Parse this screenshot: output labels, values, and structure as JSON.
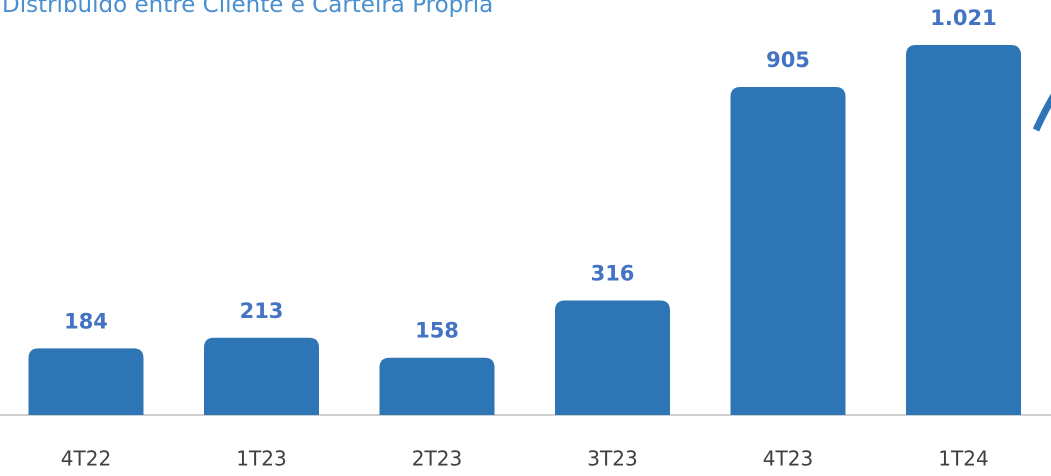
{
  "chart_data": {
    "type": "bar",
    "title": "Distribuído entre Cliente e Carteira Própria",
    "categories": [
      "4T22",
      "1T23",
      "2T23",
      "3T23",
      "4T23",
      "1T24"
    ],
    "values": [
      184,
      213,
      158,
      316,
      905,
      1021
    ],
    "value_labels": [
      "184",
      "213",
      "158",
      "316",
      "905",
      "1.021"
    ],
    "color": "#2e75b6"
  }
}
